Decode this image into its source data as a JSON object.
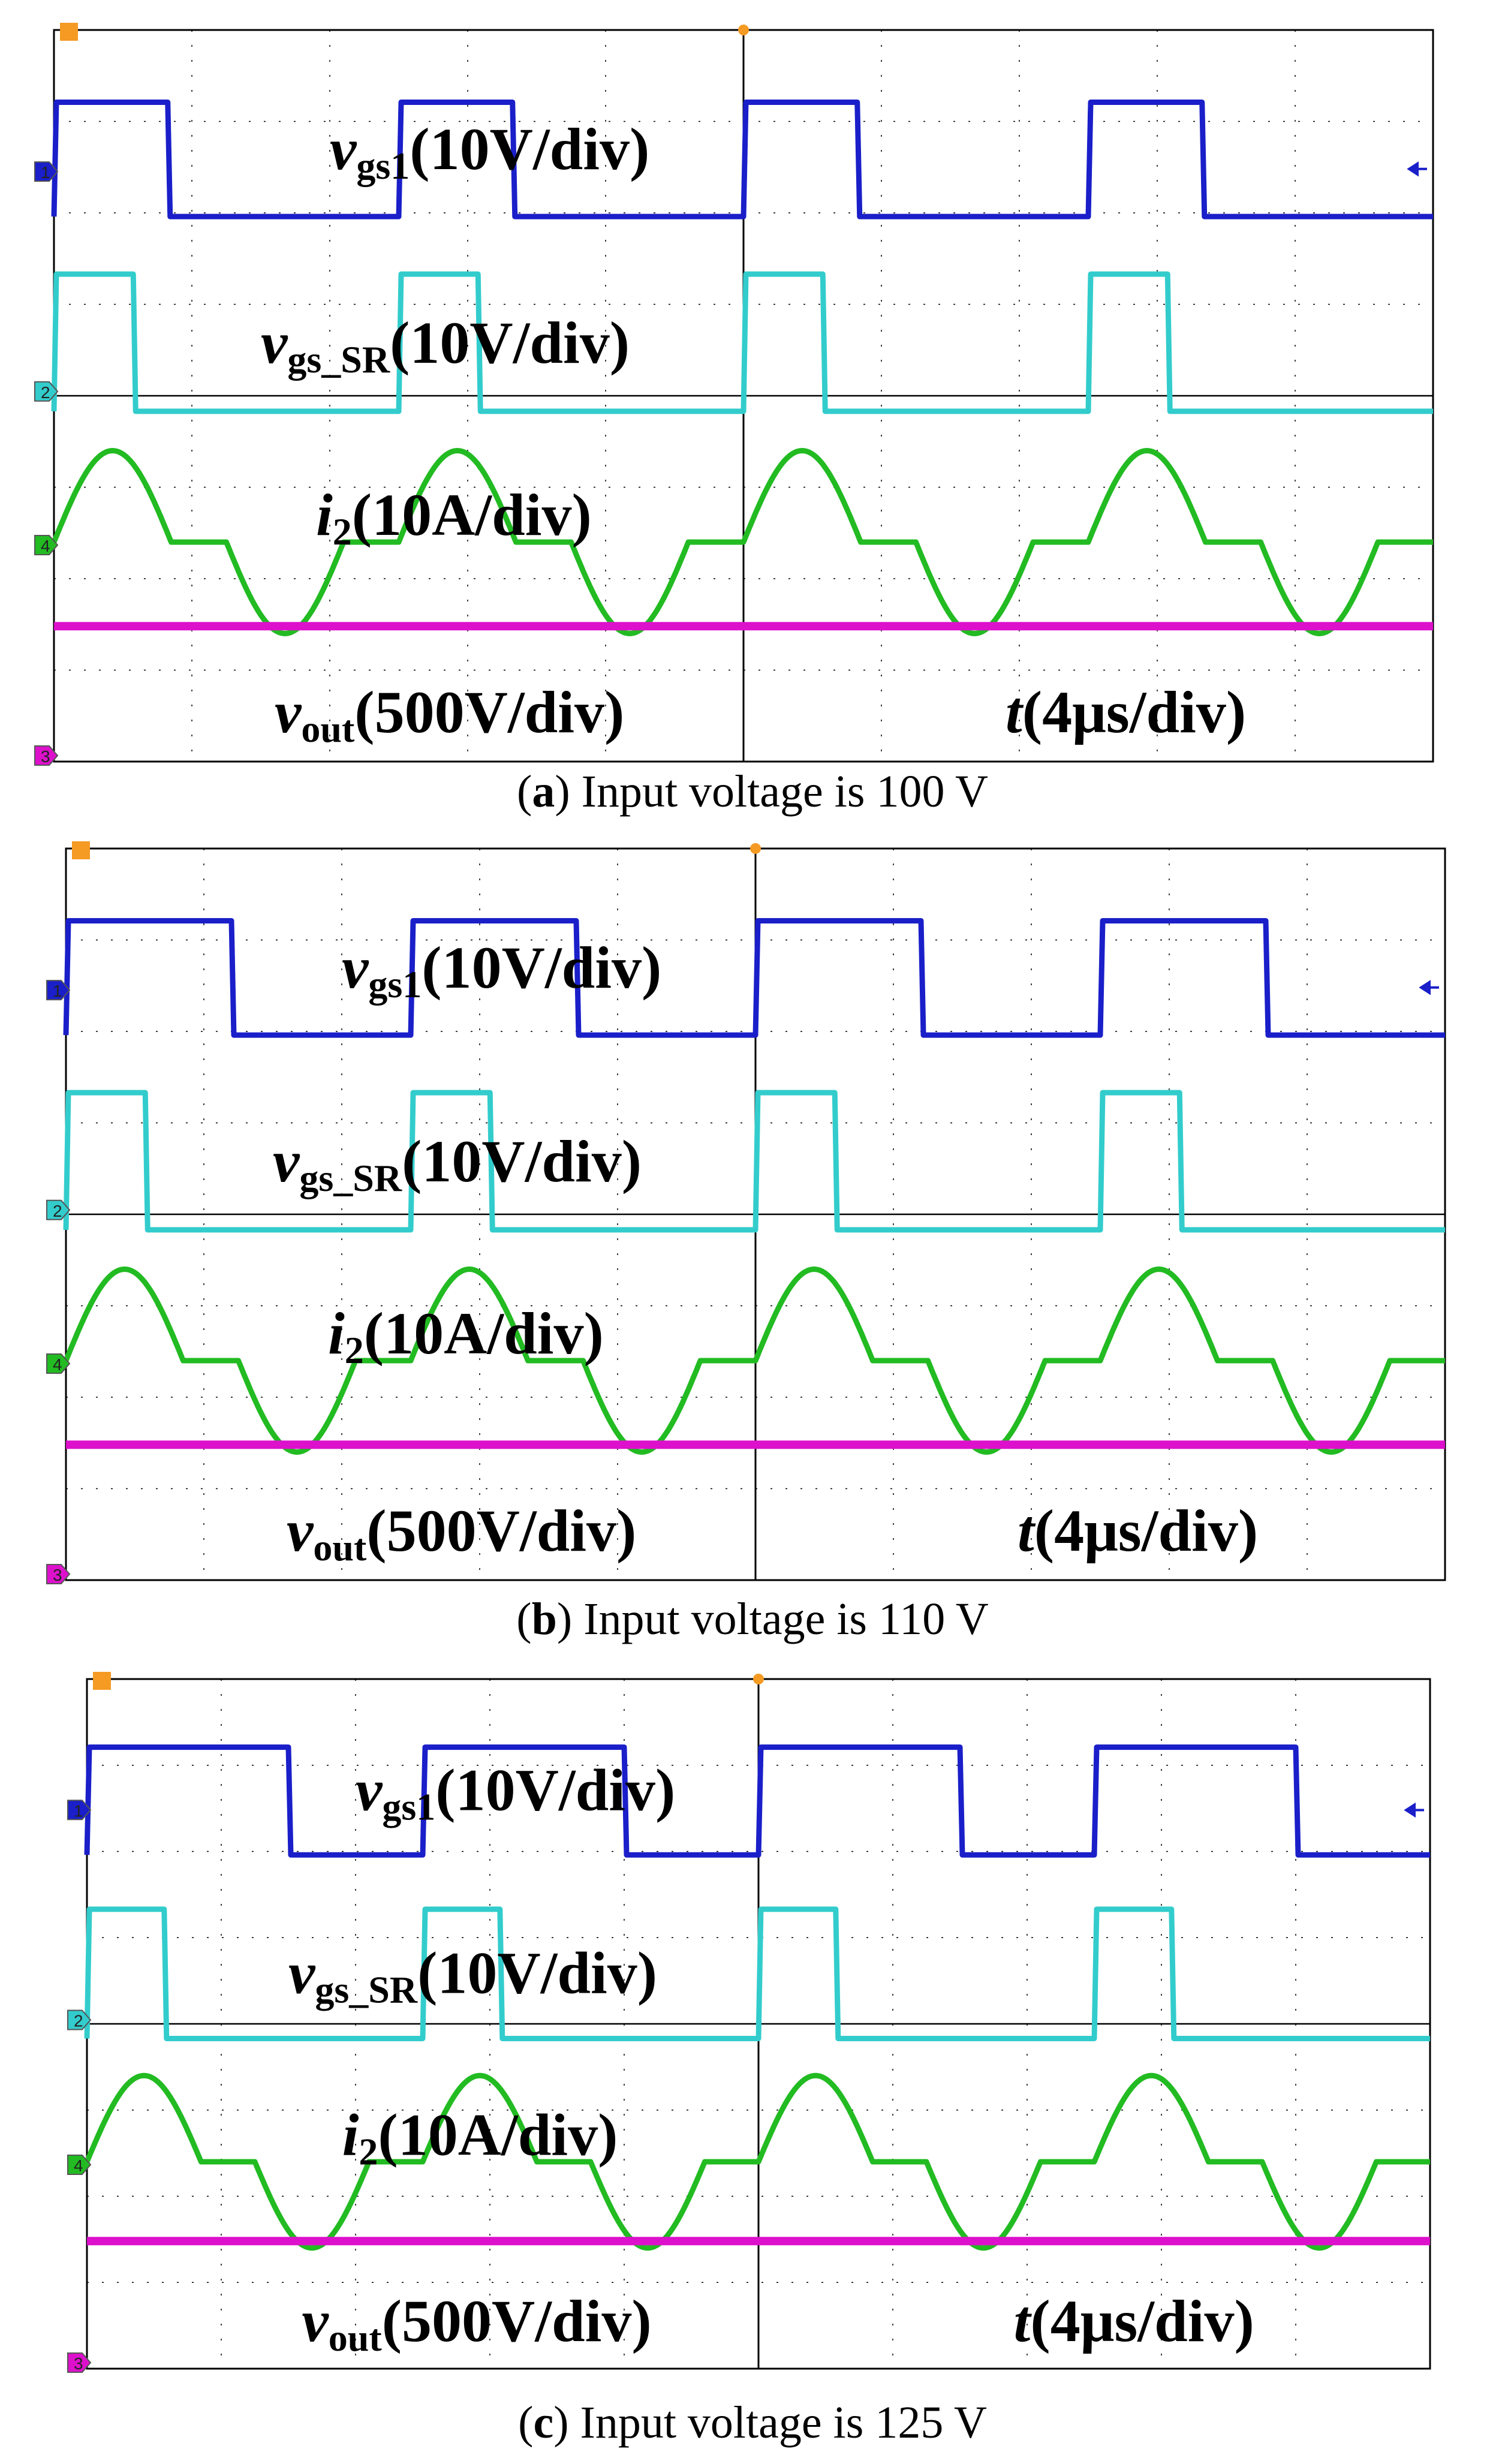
{
  "chart_data": [
    {
      "type": "line",
      "caption": {
        "open": "(",
        "letter": "a",
        "rest": ") Input voltage is 100 V"
      },
      "input_voltage_v": 100,
      "time_div": {
        "symbol": "t",
        "scale": "(4μs/div)"
      },
      "series": [
        {
          "name": "vgs1",
          "label": {
            "base": "v",
            "sub": "gs1",
            "scale": "(10V/div)"
          },
          "color": "#1a1fc9",
          "ch": "1",
          "edges_div": [
            0,
            1.65,
            5,
            6.65,
            10,
            11.65,
            15,
            16.65,
            20
          ],
          "high_div": 1.25,
          "low_div": 0
        },
        {
          "name": "vgs_SR",
          "label": {
            "base": "v",
            "sub": "gs_SR",
            "scale": "(10V/div)"
          },
          "color": "#33cccc",
          "ch": "2",
          "edges_div": [
            0,
            1.15,
            5,
            6.15,
            10,
            11.15,
            15,
            16.15,
            20
          ],
          "high_div": 1.25,
          "low_div": -0.25
        },
        {
          "name": "i2",
          "label": {
            "base": "i",
            "sub": "2",
            "scale": "(10A/div)"
          },
          "color": "#22bb22",
          "ch": "4",
          "phase_div": 0,
          "period_div": 5,
          "amp_div": 0.5
        },
        {
          "name": "vout",
          "label": {
            "base": "v",
            "sub": "out",
            "scale": "(500V/div)"
          },
          "color": "#dd11cc",
          "ch": "3",
          "offset_div": 0.7
        }
      ]
    },
    {
      "type": "line",
      "caption": {
        "open": "(",
        "letter": "b",
        "rest": ") Input voltage is 110 V"
      },
      "input_voltage_v": 110,
      "time_div": {
        "symbol": "t",
        "scale": "(4μs/div)"
      },
      "series": [
        {
          "name": "vgs1",
          "label": {
            "base": "v",
            "sub": "gs1",
            "scale": "(10V/div)"
          },
          "color": "#1a1fc9",
          "ch": "1",
          "edges_div": [
            0,
            2.4,
            5,
            7.4,
            10,
            12.4,
            15,
            17.4,
            20
          ],
          "high_div": 1.25,
          "low_div": 0
        },
        {
          "name": "vgs_SR",
          "label": {
            "base": "v",
            "sub": "gs_SR",
            "scale": "(10V/div)"
          },
          "color": "#33cccc",
          "ch": "2",
          "edges_div": [
            0,
            1.15,
            5,
            6.15,
            10,
            11.15,
            15,
            16.15,
            20
          ],
          "high_div": 1.25,
          "low_div": -0.25
        },
        {
          "name": "i2",
          "label": {
            "base": "i",
            "sub": "2",
            "scale": "(10A/div)"
          },
          "color": "#22bb22",
          "ch": "4",
          "phase_div": 0,
          "period_div": 5,
          "amp_div": 0.5
        },
        {
          "name": "vout",
          "label": {
            "base": "v",
            "sub": "out",
            "scale": "(500V/div)"
          },
          "color": "#dd11cc",
          "ch": "3",
          "offset_div": 0.75
        }
      ]
    },
    {
      "type": "line",
      "caption": {
        "open": "(",
        "letter": "c",
        "rest": ") Input voltage is 125 V"
      },
      "input_voltage_v": 125,
      "time_div": {
        "symbol": "t",
        "scale": "(4μs/div)"
      },
      "series": [
        {
          "name": "vgs1",
          "label": {
            "base": "v",
            "sub": "gs1",
            "scale": "(10V/div)"
          },
          "color": "#1a1fc9",
          "ch": "1",
          "edges_div": [
            0,
            3.0,
            5,
            8.0,
            10,
            13.0,
            15,
            18.0,
            20
          ],
          "high_div": 1.25,
          "low_div": 0
        },
        {
          "name": "vgs_SR",
          "label": {
            "base": "v",
            "sub": "gs_SR",
            "scale": "(10V/div)"
          },
          "color": "#33cccc",
          "ch": "2",
          "edges_div": [
            0,
            1.15,
            5,
            6.15,
            10,
            11.15,
            15,
            16.15,
            20
          ],
          "high_div": 1.25,
          "low_div": -0.25
        },
        {
          "name": "i2",
          "label": {
            "base": "i",
            "sub": "2",
            "scale": "(10A/div)"
          },
          "color": "#22bb22",
          "ch": "4",
          "phase_div": 0,
          "period_div": 5,
          "amp_div": 0.5
        },
        {
          "name": "vout",
          "label": {
            "base": "v",
            "sub": "out",
            "scale": "(500V/div)"
          },
          "color": "#dd11cc",
          "ch": "3",
          "offset_div": 0.7
        }
      ]
    }
  ]
}
